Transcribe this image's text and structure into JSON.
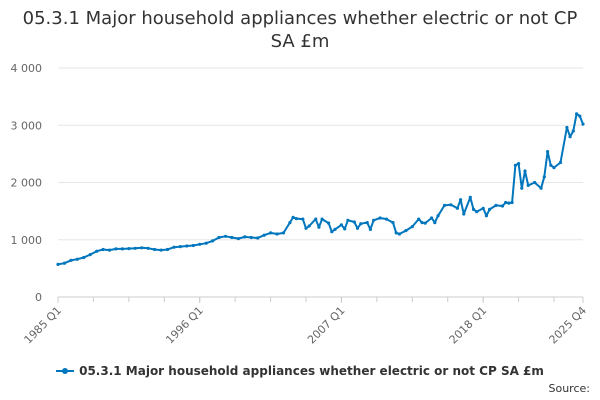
{
  "chart_data": {
    "type": "line",
    "title": "05.3.1 Major household appliances whether electric or not CP SA £m",
    "xlabel": "",
    "ylabel": "",
    "ylim": [
      0,
      4000
    ],
    "y_ticks": [
      0,
      1000,
      2000,
      3000,
      4000
    ],
    "y_tick_labels": [
      "0",
      "1 000",
      "2 000",
      "3 000",
      "4 000"
    ],
    "x_ticks": [
      "1985 Q1",
      "1996 Q1",
      "2007 Q1",
      "2018 Q1",
      "2025 Q4"
    ],
    "x_range": [
      1985.0,
      2025.75
    ],
    "grid": true,
    "legend_position": "bottom",
    "series": [
      {
        "name": "05.3.1 Major household appliances whether electric or not CP SA £m",
        "color": "#0076bd",
        "points": [
          [
            1985.0,
            570
          ],
          [
            1985.5,
            590
          ],
          [
            1986.0,
            640
          ],
          [
            1986.5,
            660
          ],
          [
            1987.0,
            690
          ],
          [
            1987.5,
            740
          ],
          [
            1988.0,
            800
          ],
          [
            1988.5,
            830
          ],
          [
            1989.0,
            820
          ],
          [
            1989.5,
            840
          ],
          [
            1990.0,
            840
          ],
          [
            1990.5,
            845
          ],
          [
            1991.0,
            850
          ],
          [
            1991.5,
            860
          ],
          [
            1992.0,
            850
          ],
          [
            1992.5,
            830
          ],
          [
            1993.0,
            820
          ],
          [
            1993.5,
            830
          ],
          [
            1994.0,
            870
          ],
          [
            1994.5,
            880
          ],
          [
            1995.0,
            890
          ],
          [
            1995.5,
            900
          ],
          [
            1996.0,
            920
          ],
          [
            1996.5,
            940
          ],
          [
            1997.0,
            980
          ],
          [
            1997.5,
            1040
          ],
          [
            1998.0,
            1060
          ],
          [
            1998.5,
            1040
          ],
          [
            1999.0,
            1020
          ],
          [
            1999.5,
            1050
          ],
          [
            2000.0,
            1040
          ],
          [
            2000.5,
            1030
          ],
          [
            2001.0,
            1080
          ],
          [
            2001.5,
            1120
          ],
          [
            2002.0,
            1100
          ],
          [
            2002.5,
            1120
          ],
          [
            2003.0,
            1300
          ],
          [
            2003.25,
            1390
          ],
          [
            2003.5,
            1370
          ],
          [
            2004.0,
            1360
          ],
          [
            2004.25,
            1200
          ],
          [
            2004.5,
            1240
          ],
          [
            2005.0,
            1360
          ],
          [
            2005.25,
            1220
          ],
          [
            2005.5,
            1360
          ],
          [
            2006.0,
            1290
          ],
          [
            2006.25,
            1140
          ],
          [
            2006.5,
            1180
          ],
          [
            2007.0,
            1260
          ],
          [
            2007.25,
            1190
          ],
          [
            2007.5,
            1340
          ],
          [
            2008.0,
            1310
          ],
          [
            2008.25,
            1200
          ],
          [
            2008.5,
            1280
          ],
          [
            2009.0,
            1300
          ],
          [
            2009.25,
            1180
          ],
          [
            2009.5,
            1340
          ],
          [
            2010.0,
            1380
          ],
          [
            2010.5,
            1360
          ],
          [
            2011.0,
            1300
          ],
          [
            2011.25,
            1120
          ],
          [
            2011.5,
            1100
          ],
          [
            2012.0,
            1160
          ],
          [
            2012.5,
            1230
          ],
          [
            2013.0,
            1360
          ],
          [
            2013.25,
            1300
          ],
          [
            2013.5,
            1290
          ],
          [
            2014.0,
            1380
          ],
          [
            2014.25,
            1300
          ],
          [
            2014.5,
            1420
          ],
          [
            2015.0,
            1600
          ],
          [
            2015.5,
            1610
          ],
          [
            2016.0,
            1550
          ],
          [
            2016.25,
            1700
          ],
          [
            2016.5,
            1450
          ],
          [
            2017.0,
            1740
          ],
          [
            2017.25,
            1530
          ],
          [
            2017.5,
            1490
          ],
          [
            2018.0,
            1550
          ],
          [
            2018.25,
            1420
          ],
          [
            2018.5,
            1530
          ],
          [
            2019.0,
            1600
          ],
          [
            2019.5,
            1590
          ],
          [
            2019.75,
            1650
          ],
          [
            2020.0,
            1640
          ],
          [
            2020.25,
            1650
          ],
          [
            2020.5,
            2300
          ],
          [
            2020.75,
            2330
          ],
          [
            2021.0,
            1900
          ],
          [
            2021.25,
            2200
          ],
          [
            2021.5,
            1950
          ],
          [
            2022.0,
            2000
          ],
          [
            2022.5,
            1900
          ],
          [
            2022.75,
            2100
          ],
          [
            2023.0,
            2540
          ],
          [
            2023.25,
            2300
          ],
          [
            2023.5,
            2260
          ],
          [
            2024.0,
            2350
          ],
          [
            2024.5,
            2960
          ],
          [
            2024.75,
            2800
          ],
          [
            2025.0,
            2900
          ],
          [
            2025.25,
            3200
          ],
          [
            2025.5,
            3160
          ],
          [
            2025.75,
            3020
          ]
        ]
      }
    ],
    "source_label": "Source:"
  }
}
